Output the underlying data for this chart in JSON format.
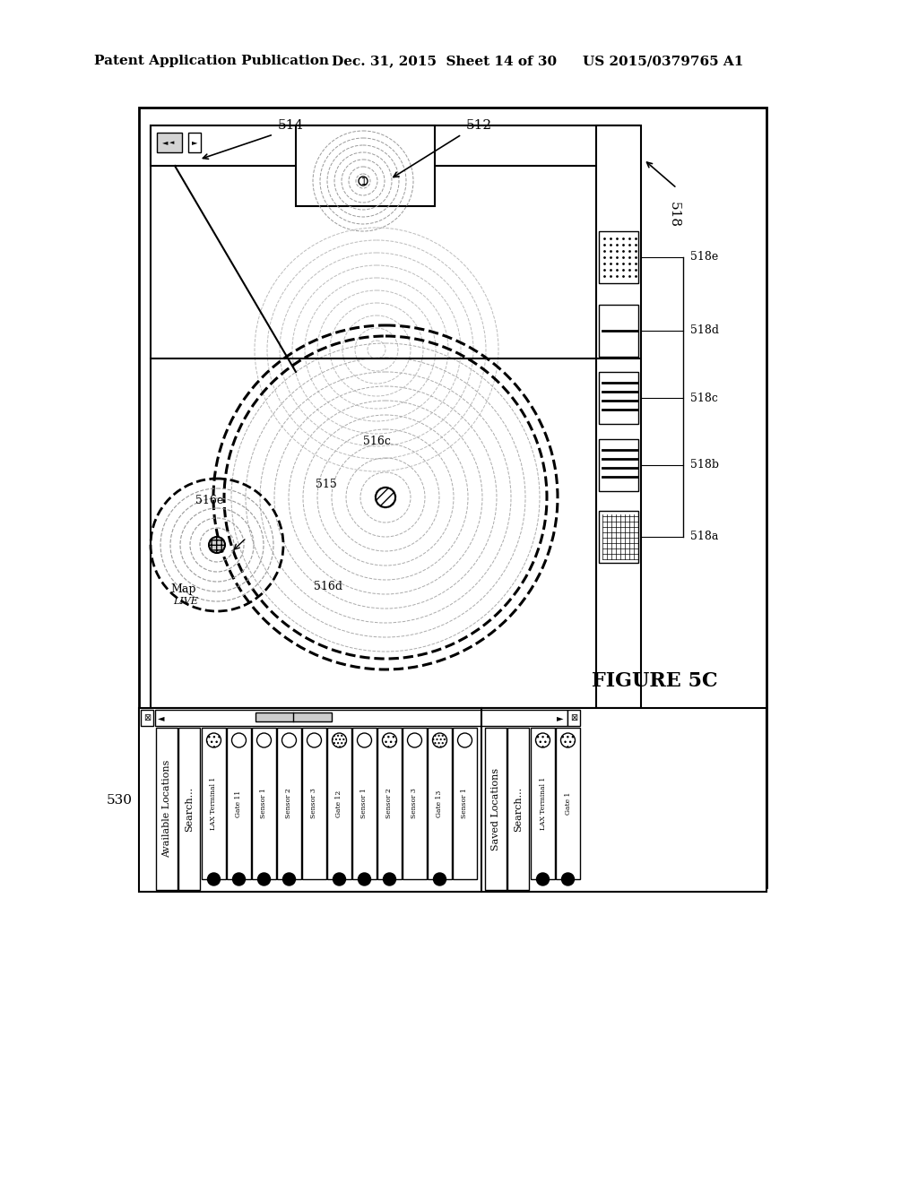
{
  "bg_color": "#ffffff",
  "header_text": "Patent Application Publication",
  "header_date": "Dec. 31, 2015  Sheet 14 of 30",
  "header_patent": "US 2015/0379765 A1",
  "figure_label": "FIGURE 5C",
  "label_514": "514",
  "label_512": "512",
  "label_518": "518",
  "label_530": "530",
  "label_515": "515",
  "label_516c": "516c",
  "label_516d": "516d",
  "label_516e": "516e",
  "label_518a": "518a",
  "label_518b": "518b",
  "label_518c": "518c",
  "label_518d": "518d",
  "label_518e": "518e",
  "map_label": "Map",
  "live_label": "LIVE"
}
